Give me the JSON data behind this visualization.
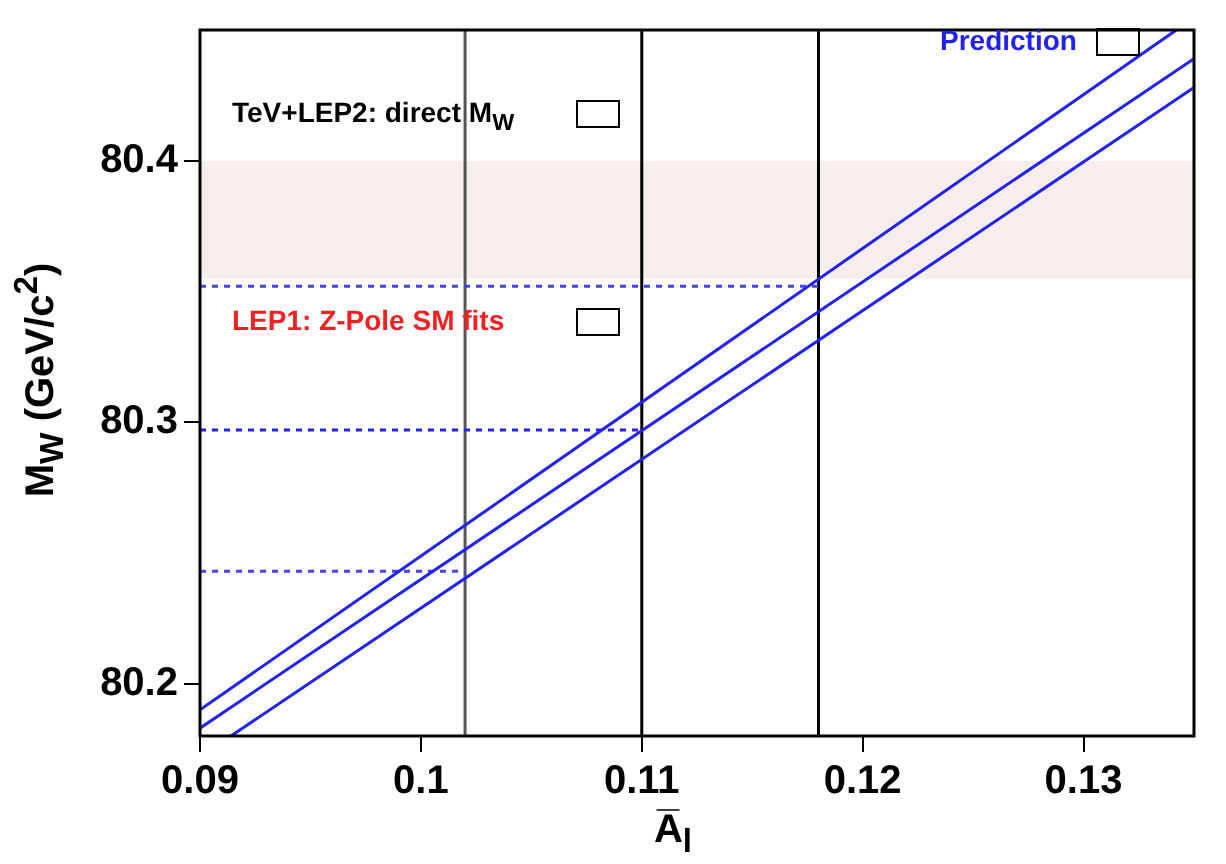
{
  "chart_data": {
    "type": "line",
    "xlabel": "A̅$_{l}$",
    "ylabel": "M$_{W}$ (GeV/c$^{2}$)",
    "xlim": [
      0.09,
      0.135
    ],
    "ylim": [
      80.18,
      80.45
    ],
    "xticks": [
      0.09,
      0.1,
      0.11,
      0.12,
      0.13
    ],
    "yticks": [
      80.2,
      80.3,
      80.4
    ],
    "grid": false,
    "legend": false,
    "marker": "none",
    "series": [
      {
        "color": "#2222ee",
        "x": [
          0.09,
          0.1342
        ],
        "values": [
          80.19,
          80.45
        ]
      },
      {
        "color": "#2222ee",
        "x": [
          0.09,
          0.135
        ],
        "values": [
          80.183,
          80.439
        ]
      },
      {
        "color": "#2222ee",
        "x": [
          0.0914,
          0.135
        ],
        "values": [
          80.18,
          80.428
        ]
      },
      {
        "color": "#4444ee",
        "line_style": "dotted",
        "x": [
          0.09,
          0.118
        ],
        "values": [
          80.352,
          80.352
        ]
      },
      {
        "color": "#2222ee",
        "line_style": "dotted",
        "x": [
          0.09,
          0.11
        ],
        "values": [
          80.297,
          80.297
        ]
      },
      {
        "color": "#4444ee",
        "line_style": "dotted",
        "x": [
          0.09,
          0.102
        ],
        "values": [
          80.243,
          80.243
        ]
      }
    ],
    "ref_lines": [
      {
        "axis": "x",
        "value": 0.102,
        "color": "#555555"
      },
      {
        "axis": "x",
        "value": 0.11,
        "color": "#000000"
      },
      {
        "axis": "x",
        "value": 0.118,
        "color": "#000000"
      }
    ],
    "bands": [
      {
        "axis": "y",
        "from": 80.355,
        "to": 80.4,
        "color": "#f6eded"
      }
    ],
    "annotations": [
      "Prediction",
      "TeV+LEP2: direct M$_{W}$",
      "LEP1: Z-Pole SM fits"
    ]
  }
}
